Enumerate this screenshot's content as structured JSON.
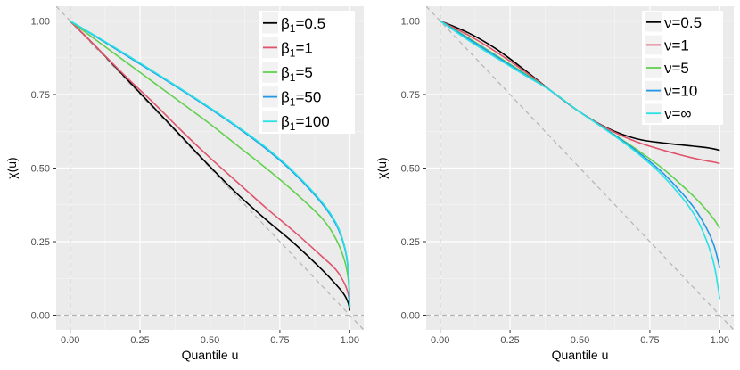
{
  "chart_data": [
    {
      "type": "line",
      "title": "",
      "xlabel": "Quantile u",
      "ylabel": "χ(u)",
      "xlim": [
        -0.05,
        1.05
      ],
      "ylim": [
        -0.05,
        1.05
      ],
      "x_ticks": [
        "0.00",
        "0.25",
        "0.50",
        "0.75",
        "1.00"
      ],
      "y_ticks": [
        "0.00",
        "0.25",
        "0.50",
        "0.75",
        "1.00"
      ],
      "grid": true,
      "legend_position": "top-right",
      "reference_lines": {
        "diagonal": "1 - u",
        "x": 0,
        "y": 0
      },
      "x": [
        0,
        0.1,
        0.2,
        0.3,
        0.4,
        0.5,
        0.6,
        0.7,
        0.8,
        0.9,
        0.95,
        0.98,
        0.995,
        1.0
      ],
      "series": [
        {
          "name": "β1=0.5",
          "sym": "β",
          "sub": "1",
          "val": "=0.5",
          "color": "#000000",
          "values": [
            1.0,
            0.905,
            0.805,
            0.705,
            0.605,
            0.505,
            0.41,
            0.325,
            0.245,
            0.155,
            0.105,
            0.07,
            0.04,
            0.015
          ]
        },
        {
          "name": "β1=1",
          "sym": "β",
          "sub": "1",
          "val": "=1",
          "color": "#DF536B",
          "values": [
            1.0,
            0.905,
            0.81,
            0.72,
            0.625,
            0.535,
            0.45,
            0.365,
            0.285,
            0.2,
            0.155,
            0.11,
            0.07,
            0.03
          ]
        },
        {
          "name": "β1=5",
          "sym": "β",
          "sub": "1",
          "val": "=5",
          "color": "#61D04F",
          "values": [
            1.0,
            0.93,
            0.86,
            0.79,
            0.72,
            0.65,
            0.575,
            0.5,
            0.42,
            0.33,
            0.26,
            0.19,
            0.12,
            0.03
          ]
        },
        {
          "name": "β1=50",
          "sym": "β",
          "sub": "1",
          "val": "=50",
          "color": "#2297E6",
          "values": [
            1.0,
            0.942,
            0.883,
            0.824,
            0.764,
            0.702,
            0.637,
            0.566,
            0.483,
            0.38,
            0.31,
            0.235,
            0.15,
            0.03
          ]
        },
        {
          "name": "β1=100",
          "sym": "β",
          "sub": "1",
          "val": "=100",
          "color": "#28E2E5",
          "values": [
            1.0,
            0.944,
            0.886,
            0.827,
            0.767,
            0.705,
            0.64,
            0.57,
            0.487,
            0.385,
            0.315,
            0.24,
            0.155,
            0.03
          ]
        }
      ]
    },
    {
      "type": "line",
      "title": "",
      "xlabel": "Quantile u",
      "ylabel": "χ(u)",
      "xlim": [
        -0.05,
        1.05
      ],
      "ylim": [
        -0.05,
        1.05
      ],
      "x_ticks": [
        "0.00",
        "0.25",
        "0.50",
        "0.75",
        "1.00"
      ],
      "y_ticks": [
        "0.00",
        "0.25",
        "0.50",
        "0.75",
        "1.00"
      ],
      "grid": true,
      "legend_position": "top-right",
      "reference_lines": {
        "diagonal": "1 - u",
        "x": 0,
        "y": 0
      },
      "x": [
        0,
        0.1,
        0.2,
        0.3,
        0.4,
        0.5,
        0.6,
        0.7,
        0.8,
        0.9,
        0.95,
        0.98,
        1.0
      ],
      "series": [
        {
          "name": "ν=0.5",
          "sym": "ν",
          "sub": "",
          "val": "=0.5",
          "color": "#000000",
          "values": [
            1.0,
            0.96,
            0.905,
            0.835,
            0.76,
            0.69,
            0.635,
            0.6,
            0.585,
            0.575,
            0.57,
            0.565,
            0.56
          ]
        },
        {
          "name": "ν=1",
          "sym": "ν",
          "sub": "",
          "val": "=1",
          "color": "#DF536B",
          "values": [
            1.0,
            0.952,
            0.895,
            0.83,
            0.76,
            0.69,
            0.633,
            0.59,
            0.56,
            0.535,
            0.525,
            0.52,
            0.515
          ]
        },
        {
          "name": "ν=5",
          "sym": "ν",
          "sub": "",
          "val": "=5",
          "color": "#61D04F",
          "values": [
            1.0,
            0.943,
            0.883,
            0.823,
            0.76,
            0.69,
            0.628,
            0.565,
            0.495,
            0.41,
            0.36,
            0.325,
            0.295
          ]
        },
        {
          "name": "ν=10",
          "sym": "ν",
          "sub": "",
          "val": "=10",
          "color": "#2297E6",
          "values": [
            1.0,
            0.94,
            0.88,
            0.82,
            0.76,
            0.69,
            0.627,
            0.56,
            0.48,
            0.375,
            0.3,
            0.235,
            0.16
          ]
        },
        {
          "name": "ν=∞",
          "sym": "ν",
          "sub": "",
          "val": "=∞",
          "color": "#28E2E5",
          "values": [
            1.0,
            0.935,
            0.875,
            0.817,
            0.76,
            0.69,
            0.625,
            0.555,
            0.47,
            0.355,
            0.26,
            0.17,
            0.055
          ]
        }
      ]
    }
  ]
}
